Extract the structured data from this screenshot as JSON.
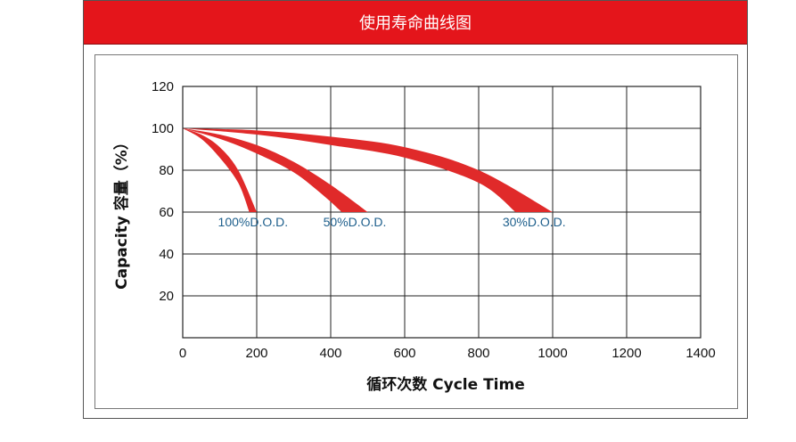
{
  "banner": {
    "title": "使用寿命曲线图"
  },
  "chart_data": {
    "type": "area",
    "title": "使用寿命曲线图",
    "xlabel": "循环次数 Cycle Time",
    "ylabel": "Capacity 容量（%）",
    "xlim": [
      0,
      1400
    ],
    "ylim": [
      0,
      120
    ],
    "x_ticks": [
      0,
      200,
      400,
      600,
      800,
      1000,
      1200,
      1400
    ],
    "y_ticks": [
      20,
      40,
      60,
      80,
      100,
      120
    ],
    "grid": true,
    "color": "#e02a2a",
    "series": [
      {
        "name": "100%D.O.D.",
        "upper": [
          [
            0,
            100
          ],
          [
            50,
            97
          ],
          [
            100,
            91
          ],
          [
            150,
            80
          ],
          [
            200,
            60
          ]
        ],
        "lower": [
          [
            0,
            100
          ],
          [
            50,
            95
          ],
          [
            100,
            86
          ],
          [
            150,
            74
          ],
          [
            180,
            60
          ]
        ]
      },
      {
        "name": "50%D.O.D.",
        "upper": [
          [
            0,
            100
          ],
          [
            100,
            97
          ],
          [
            200,
            92
          ],
          [
            300,
            84
          ],
          [
            400,
            73
          ],
          [
            500,
            60
          ]
        ],
        "lower": [
          [
            0,
            100
          ],
          [
            100,
            95
          ],
          [
            200,
            88
          ],
          [
            300,
            79
          ],
          [
            380,
            68
          ],
          [
            430,
            60
          ]
        ]
      },
      {
        "name": "30%D.O.D.",
        "upper": [
          [
            0,
            100
          ],
          [
            200,
            99
          ],
          [
            400,
            96
          ],
          [
            600,
            91
          ],
          [
            800,
            80
          ],
          [
            1000,
            60
          ]
        ],
        "lower": [
          [
            0,
            100
          ],
          [
            200,
            97
          ],
          [
            400,
            92
          ],
          [
            600,
            86
          ],
          [
            800,
            74
          ],
          [
            900,
            60
          ]
        ]
      }
    ]
  }
}
